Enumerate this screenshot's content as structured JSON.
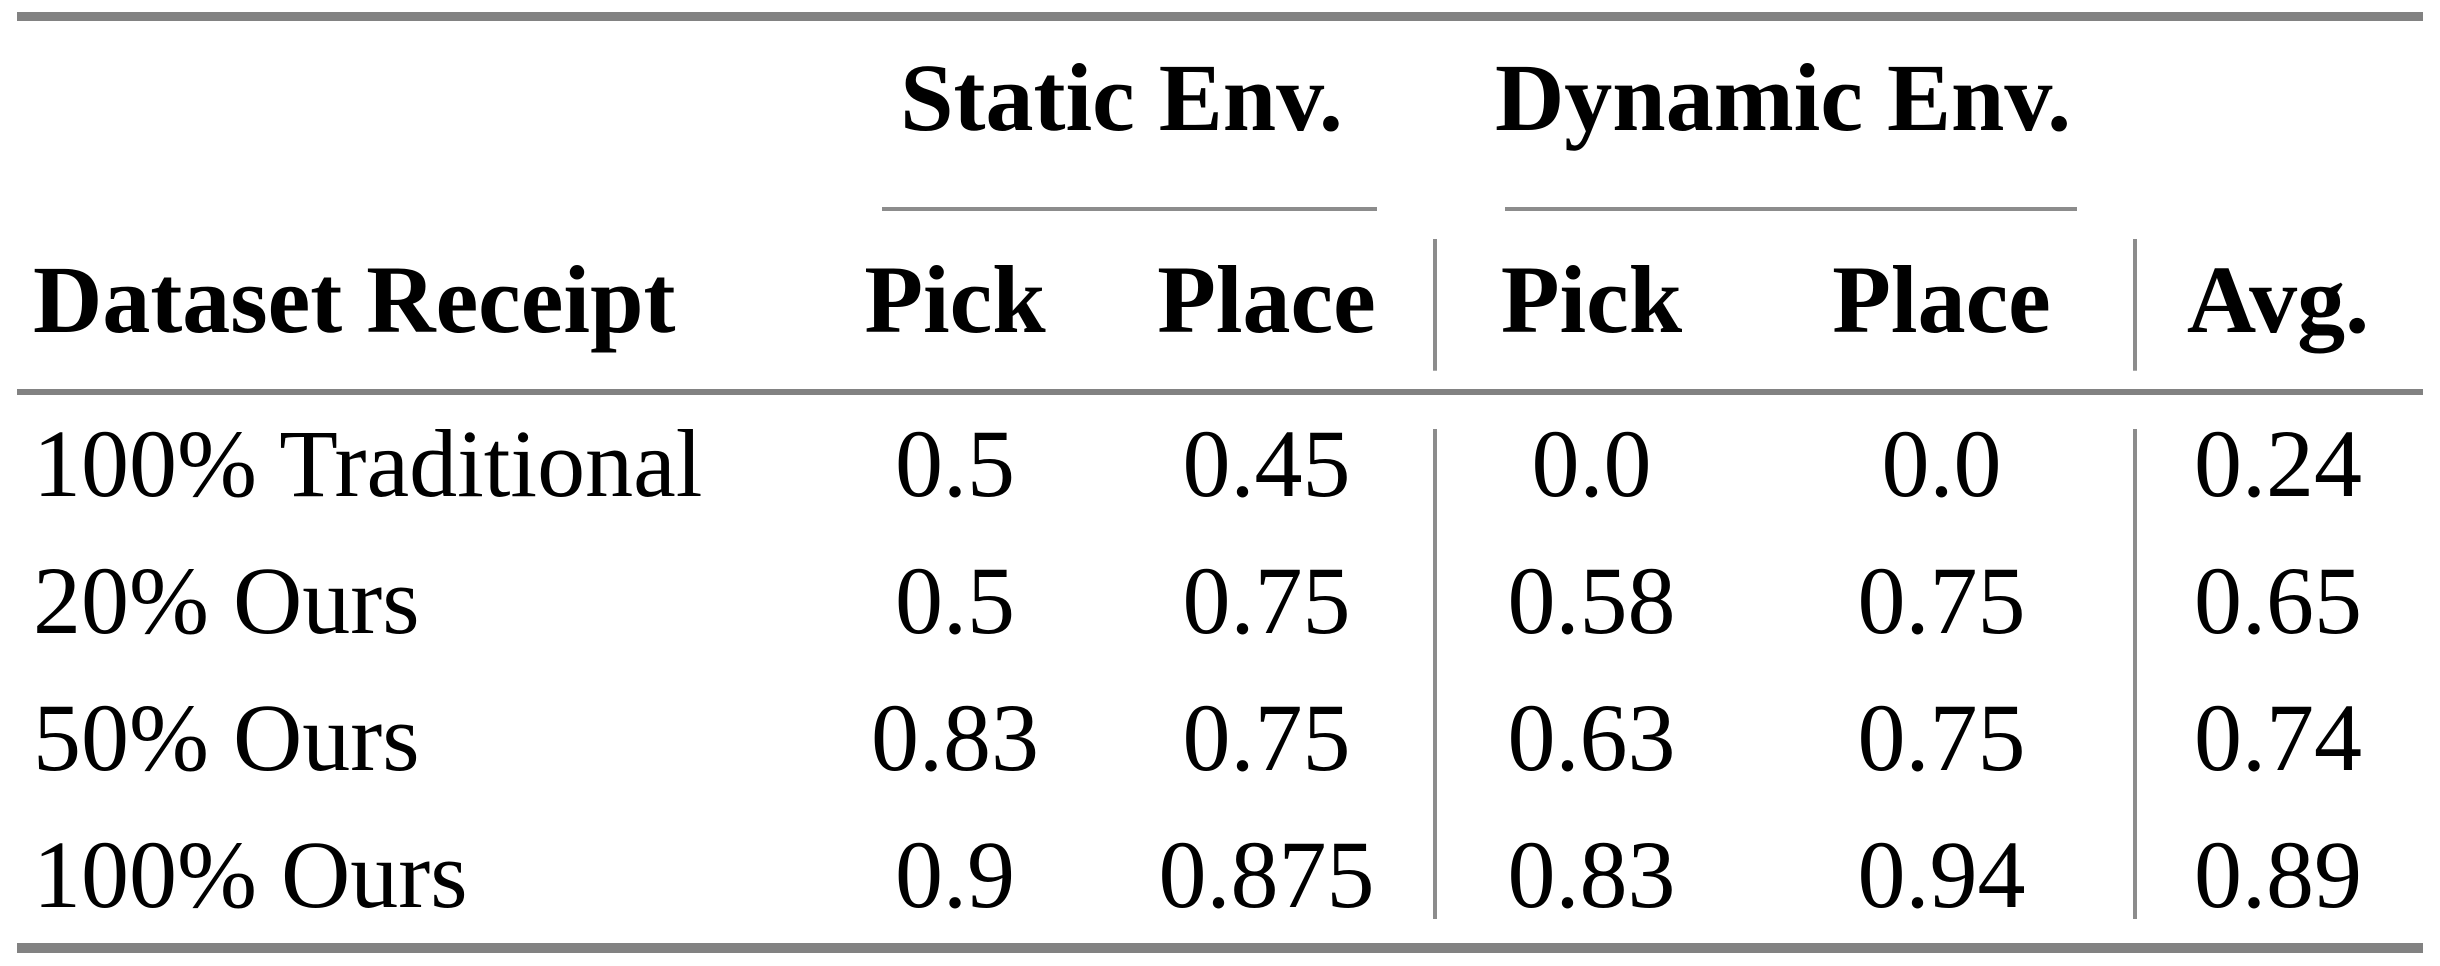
{
  "table": {
    "group_headers": [
      {
        "label": "Static Env."
      },
      {
        "label": "Dynamic Env."
      }
    ],
    "column_headers": {
      "dataset": "Dataset Receipt",
      "static_pick": "Pick",
      "static_place": "Place",
      "dynamic_pick": "Pick",
      "dynamic_place": "Place",
      "avg": "Avg."
    },
    "rows": [
      [
        "100% Traditional",
        "0.5",
        "0.45",
        "0.0",
        "0.0",
        "0.24"
      ],
      [
        "20% Ours",
        "0.5",
        "0.75",
        "0.58",
        "0.75",
        "0.65"
      ],
      [
        "50% Ours",
        "0.83",
        "0.75",
        "0.63",
        "0.75",
        "0.74"
      ],
      [
        "100% Ours",
        "0.9",
        "0.875",
        "0.83",
        "0.94",
        "0.89"
      ]
    ]
  },
  "chart_data": {
    "type": "table",
    "columns": [
      "Dataset Receipt",
      "Static Env. Pick",
      "Static Env. Place",
      "Dynamic Env. Pick",
      "Dynamic Env. Place",
      "Avg."
    ],
    "rows": [
      [
        "100% Traditional",
        0.5,
        0.45,
        0.0,
        0.0,
        0.24
      ],
      [
        "20% Ours",
        0.5,
        0.75,
        0.58,
        0.75,
        0.65
      ],
      [
        "50% Ours",
        0.83,
        0.75,
        0.63,
        0.75,
        0.74
      ],
      [
        "100% Ours",
        0.9,
        0.875,
        0.83,
        0.94,
        0.89
      ]
    ]
  },
  "colors": {
    "rule_heavy": "#828282",
    "rule_light": "#8c8c8c",
    "text": "#000000",
    "background": "#ffffff"
  }
}
